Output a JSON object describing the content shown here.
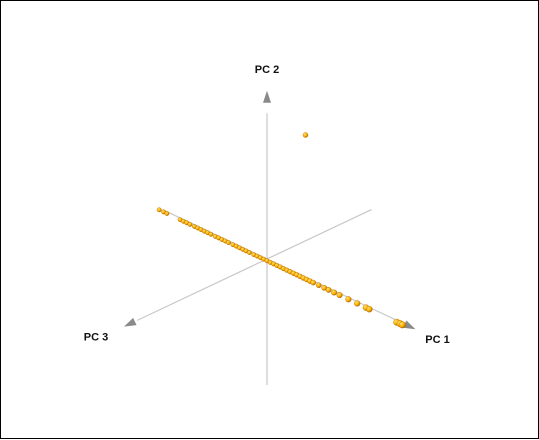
{
  "chart_data": {
    "type": "scatter",
    "projection": "3d",
    "axis_labels": {
      "x": "PC 1",
      "y": "PC 2",
      "z": "PC 3"
    },
    "colors": {
      "point_fill": "#ffb300",
      "point_shade": "#b86e00",
      "axis_line": "#c8c8c8",
      "arrow": "#8a8a8a"
    },
    "points": [
      {
        "pc1": -0.98,
        "pc2": -0.02,
        "pc3": 0.0
      },
      {
        "pc1": -0.94,
        "pc2": -0.02,
        "pc3": 0.0
      },
      {
        "pc1": -0.91,
        "pc2": -0.02,
        "pc3": 0.0
      },
      {
        "pc1": -0.79,
        "pc2": -0.02,
        "pc3": 0.0
      },
      {
        "pc1": -0.76,
        "pc2": -0.02,
        "pc3": 0.0
      },
      {
        "pc1": -0.73,
        "pc2": -0.02,
        "pc3": 0.0
      },
      {
        "pc1": -0.7,
        "pc2": -0.02,
        "pc3": 0.0
      },
      {
        "pc1": -0.66,
        "pc2": -0.02,
        "pc3": 0.0
      },
      {
        "pc1": -0.63,
        "pc2": -0.02,
        "pc3": 0.0
      },
      {
        "pc1": -0.6,
        "pc2": -0.02,
        "pc3": 0.0
      },
      {
        "pc1": -0.57,
        "pc2": -0.02,
        "pc3": 0.0
      },
      {
        "pc1": -0.54,
        "pc2": -0.02,
        "pc3": 0.0
      },
      {
        "pc1": -0.51,
        "pc2": -0.02,
        "pc3": 0.0
      },
      {
        "pc1": -0.47,
        "pc2": -0.02,
        "pc3": 0.0
      },
      {
        "pc1": -0.44,
        "pc2": -0.02,
        "pc3": 0.0
      },
      {
        "pc1": -0.41,
        "pc2": -0.02,
        "pc3": 0.0
      },
      {
        "pc1": -0.38,
        "pc2": -0.02,
        "pc3": 0.0
      },
      {
        "pc1": -0.35,
        "pc2": -0.02,
        "pc3": 0.0
      },
      {
        "pc1": -0.31,
        "pc2": -0.02,
        "pc3": 0.0
      },
      {
        "pc1": -0.28,
        "pc2": -0.02,
        "pc3": 0.0
      },
      {
        "pc1": -0.25,
        "pc2": -0.02,
        "pc3": 0.0
      },
      {
        "pc1": -0.22,
        "pc2": -0.02,
        "pc3": 0.0
      },
      {
        "pc1": -0.19,
        "pc2": -0.02,
        "pc3": 0.0
      },
      {
        "pc1": -0.16,
        "pc2": -0.02,
        "pc3": 0.0
      },
      {
        "pc1": -0.12,
        "pc2": -0.02,
        "pc3": 0.0
      },
      {
        "pc1": -0.09,
        "pc2": -0.02,
        "pc3": 0.0
      },
      {
        "pc1": -0.06,
        "pc2": -0.02,
        "pc3": 0.0
      },
      {
        "pc1": -0.03,
        "pc2": -0.02,
        "pc3": 0.0
      },
      {
        "pc1": 0.0,
        "pc2": -0.02,
        "pc3": 0.0
      },
      {
        "pc1": 0.03,
        "pc2": -0.02,
        "pc3": 0.0
      },
      {
        "pc1": 0.06,
        "pc2": -0.02,
        "pc3": 0.0
      },
      {
        "pc1": 0.09,
        "pc2": -0.02,
        "pc3": 0.0
      },
      {
        "pc1": 0.12,
        "pc2": -0.02,
        "pc3": 0.0
      },
      {
        "pc1": 0.15,
        "pc2": -0.02,
        "pc3": 0.0
      },
      {
        "pc1": 0.18,
        "pc2": -0.02,
        "pc3": 0.0
      },
      {
        "pc1": 0.21,
        "pc2": -0.02,
        "pc3": 0.0
      },
      {
        "pc1": 0.24,
        "pc2": -0.02,
        "pc3": 0.0
      },
      {
        "pc1": 0.27,
        "pc2": -0.02,
        "pc3": 0.0
      },
      {
        "pc1": 0.3,
        "pc2": -0.02,
        "pc3": 0.0
      },
      {
        "pc1": 0.33,
        "pc2": -0.02,
        "pc3": 0.0
      },
      {
        "pc1": 0.36,
        "pc2": -0.02,
        "pc3": 0.0
      },
      {
        "pc1": 0.39,
        "pc2": -0.02,
        "pc3": 0.0
      },
      {
        "pc1": 0.42,
        "pc2": -0.02,
        "pc3": 0.0
      },
      {
        "pc1": 0.47,
        "pc2": -0.02,
        "pc3": 0.0
      },
      {
        "pc1": 0.52,
        "pc2": -0.02,
        "pc3": 0.0
      },
      {
        "pc1": 0.56,
        "pc2": -0.02,
        "pc3": 0.0
      },
      {
        "pc1": 0.61,
        "pc2": -0.02,
        "pc3": 0.0
      },
      {
        "pc1": 0.66,
        "pc2": -0.02,
        "pc3": 0.0
      },
      {
        "pc1": 0.74,
        "pc2": -0.02,
        "pc3": 0.0
      },
      {
        "pc1": 0.82,
        "pc2": -0.02,
        "pc3": 0.0
      },
      {
        "pc1": 0.9,
        "pc2": -0.02,
        "pc3": 0.0
      },
      {
        "pc1": 0.93,
        "pc2": -0.02,
        "pc3": 0.0
      },
      {
        "pc1": 1.18,
        "pc2": -0.02,
        "pc3": 0.0
      },
      {
        "pc1": 1.21,
        "pc2": -0.02,
        "pc3": 0.0
      },
      {
        "pc1": 1.23,
        "pc2": -0.02,
        "pc3": 0.0
      },
      {
        "pc1": 0.35,
        "pc2": 1.58,
        "pc3": 0.0
      }
    ]
  }
}
